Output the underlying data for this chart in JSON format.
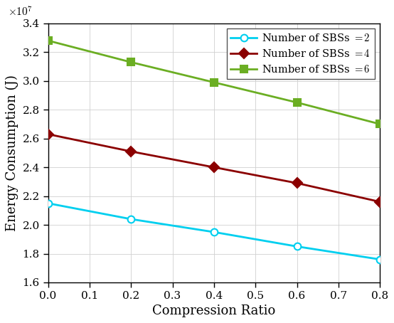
{
  "x": [
    0.0,
    0.2,
    0.4,
    0.6,
    0.8
  ],
  "sbs2": [
    21500000.0,
    20400000.0,
    19500000.0,
    18500000.0,
    17600000.0
  ],
  "sbs4": [
    26300000.0,
    25100000.0,
    24000000.0,
    22900000.0,
    21600000.0
  ],
  "sbs6": [
    32800000.0,
    31300000.0,
    29900000.0,
    28500000.0,
    27000000.0
  ],
  "colors": [
    "#00CFEF",
    "#8B0000",
    "#6BAE23"
  ],
  "markers": [
    "o",
    "D",
    "s"
  ],
  "markerfacecolors": [
    "#00CFEF",
    "#8B0000",
    "#6BAE23"
  ],
  "markeredgecolors": [
    "#00CFEF",
    "#8B0000",
    "#6BAE23"
  ],
  "labels": [
    "Number of SBSs $= 2$",
    "Number of SBSs $= 4$",
    "Number of SBSs $= 6$"
  ],
  "xlabel": "Compression Ratio",
  "ylabel": "Energy Consumption (J)",
  "xlim": [
    0.0,
    0.8
  ],
  "ylim": [
    16000000.0,
    34000000.0
  ],
  "yticks": [
    16000000.0,
    18000000.0,
    20000000.0,
    22000000.0,
    24000000.0,
    26000000.0,
    28000000.0,
    30000000.0,
    32000000.0,
    34000000.0
  ],
  "xticks": [
    0.0,
    0.1,
    0.2,
    0.3,
    0.4,
    0.5,
    0.6,
    0.7,
    0.8
  ],
  "linewidth": 2.0,
  "markersize": 7,
  "legend_loc": "upper right",
  "grid": true,
  "bg_color": "#ffffff"
}
